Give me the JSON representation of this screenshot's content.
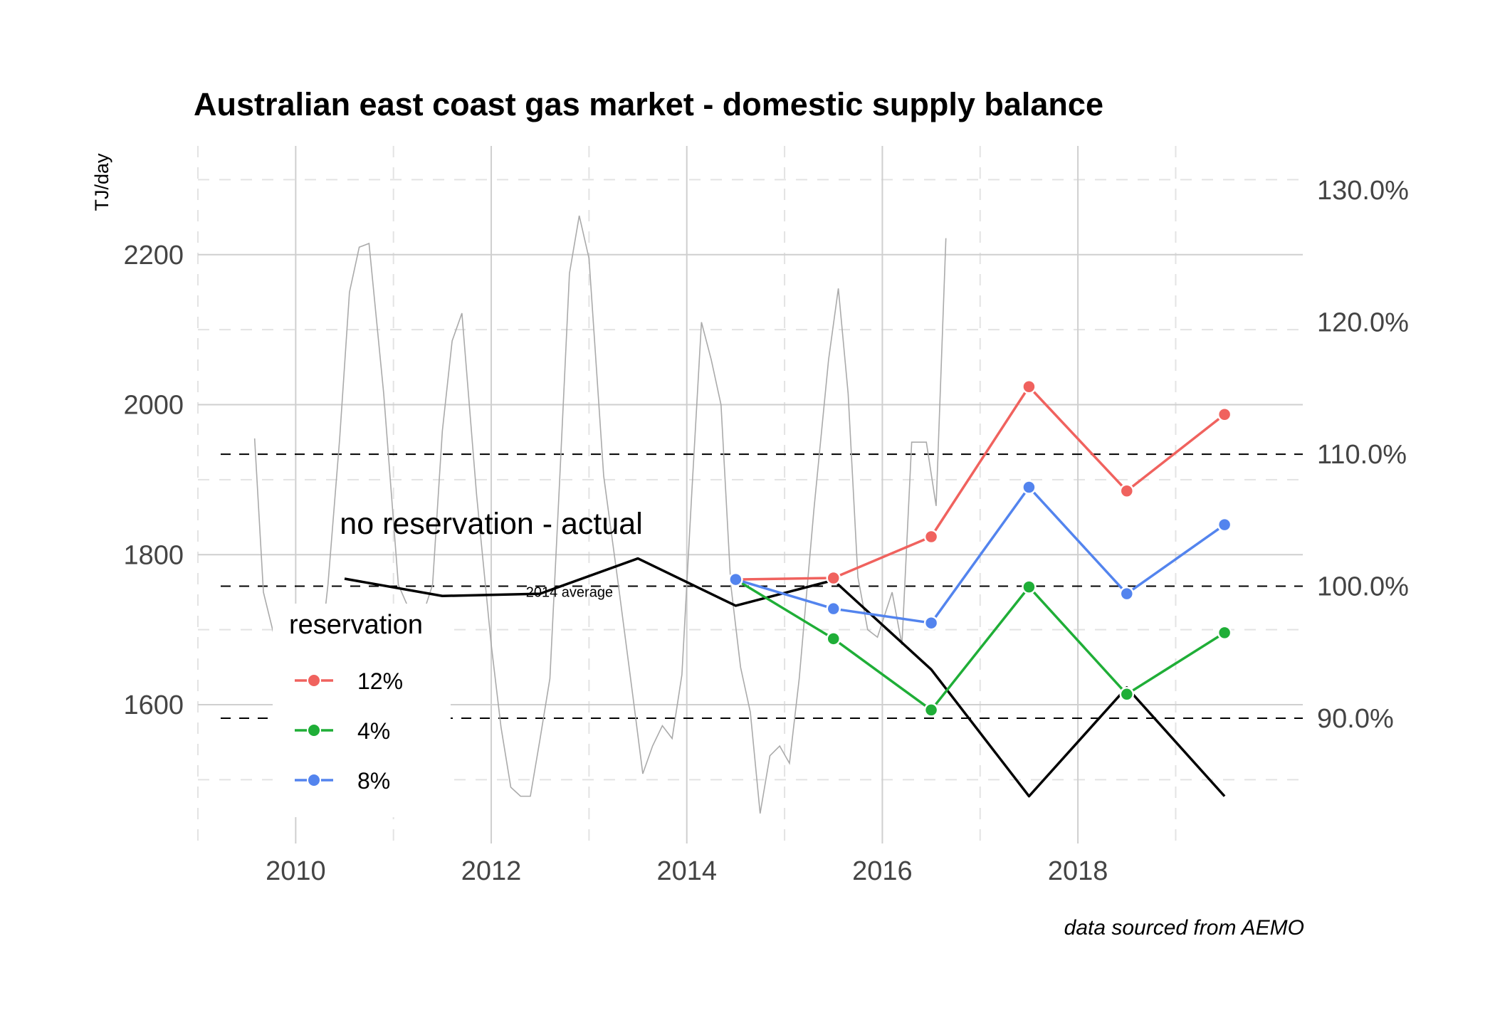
{
  "chart_data": {
    "type": "line",
    "title": "Australian east coast gas market - domestic supply balance",
    "ylabel": "TJ/day",
    "xlabel": "",
    "caption": "data sourced from AEMO",
    "xlim": [
      2009.0,
      2020.3
    ],
    "ylim": [
      1415,
      2345
    ],
    "y_ticks": [
      1600,
      1800,
      2000,
      2200
    ],
    "x_ticks": [
      2010,
      2012,
      2014,
      2016,
      2018
    ],
    "y2_ticks": [
      {
        "value": 1582,
        "label": "90.0%"
      },
      {
        "value": 1758,
        "label": "100.0%"
      },
      {
        "value": 1934,
        "label": "110.0%"
      },
      {
        "value": 2110,
        "label": "120.0%"
      },
      {
        "value": 2286,
        "label": "130.0%"
      }
    ],
    "reference_lines": [
      1582,
      1758,
      1934
    ],
    "grid": true,
    "legend_position": "left-inside",
    "legend_title": "reservation",
    "annotations": {
      "main": {
        "text": "no reservation - actual",
        "x": 2012.0,
        "y": 1828
      },
      "reference": {
        "text": "2014 average",
        "x": 2012.8,
        "y": 1744
      }
    },
    "monthly_actual": {
      "name": "",
      "color": "#aaaaaa",
      "points": [
        [
          2009.58,
          1955
        ],
        [
          2009.67,
          1750
        ],
        [
          2009.83,
          1665
        ],
        [
          2009.92,
          1640
        ],
        [
          2010.0,
          1600
        ],
        [
          2010.17,
          1570
        ],
        [
          2010.33,
          1760
        ],
        [
          2010.45,
          1955
        ],
        [
          2010.55,
          2150
        ],
        [
          2010.65,
          2210
        ],
        [
          2010.75,
          2215
        ],
        [
          2010.9,
          2015
        ],
        [
          2011.05,
          1760
        ],
        [
          2011.25,
          1700
        ],
        [
          2011.4,
          1760
        ],
        [
          2011.5,
          1965
        ],
        [
          2011.6,
          2085
        ],
        [
          2011.7,
          2122
        ],
        [
          2011.85,
          1880
        ],
        [
          2012.0,
          1680
        ],
        [
          2012.1,
          1570
        ],
        [
          2012.2,
          1490
        ],
        [
          2012.3,
          1478
        ],
        [
          2012.4,
          1478
        ],
        [
          2012.5,
          1555
        ],
        [
          2012.6,
          1635
        ],
        [
          2012.7,
          1900
        ],
        [
          2012.8,
          2175
        ],
        [
          2012.9,
          2252
        ],
        [
          2013.0,
          2195
        ],
        [
          2013.15,
          1905
        ],
        [
          2013.3,
          1760
        ],
        [
          2013.45,
          1610
        ],
        [
          2013.55,
          1508
        ],
        [
          2013.65,
          1545
        ],
        [
          2013.75,
          1572
        ],
        [
          2013.85,
          1555
        ],
        [
          2013.95,
          1640
        ],
        [
          2014.05,
          1880
        ],
        [
          2014.15,
          2110
        ],
        [
          2014.25,
          2060
        ],
        [
          2014.35,
          2000
        ],
        [
          2014.45,
          1760
        ],
        [
          2014.55,
          1650
        ],
        [
          2014.65,
          1590
        ],
        [
          2014.75,
          1455
        ],
        [
          2014.85,
          1532
        ],
        [
          2014.95,
          1545
        ],
        [
          2015.05,
          1522
        ],
        [
          2015.15,
          1635
        ],
        [
          2015.3,
          1860
        ],
        [
          2015.45,
          2060
        ],
        [
          2015.55,
          2155
        ],
        [
          2015.65,
          2015
        ],
        [
          2015.75,
          1770
        ],
        [
          2015.85,
          1700
        ],
        [
          2015.95,
          1690
        ],
        [
          2016.1,
          1750
        ],
        [
          2016.2,
          1680
        ],
        [
          2016.3,
          1950
        ],
        [
          2016.45,
          1950
        ],
        [
          2016.55,
          1865
        ],
        [
          2016.65,
          2222
        ]
      ]
    },
    "no_reservation_series": {
      "name": "no reservation - actual",
      "color": "#000000",
      "x": [
        2010.5,
        2011.5,
        2012.5,
        2013.5,
        2014.5,
        2015.5,
        2016.5,
        2017.5,
        2018.5,
        2019.5
      ],
      "values": [
        1768,
        1745,
        1748,
        1795,
        1732,
        1766,
        1647,
        1478,
        1623,
        1478
      ]
    },
    "series": [
      {
        "name": "12%",
        "color": "#F0625E",
        "x": [
          2014.5,
          2015.5,
          2016.5,
          2017.5,
          2018.5,
          2019.5
        ],
        "values": [
          1767,
          1769,
          1824,
          2024,
          1885,
          1987
        ]
      },
      {
        "name": "4%",
        "color": "#1FAE37",
        "x": [
          2014.5,
          2015.5,
          2016.5,
          2017.5,
          2018.5,
          2019.5
        ],
        "values": [
          1767,
          1688,
          1593,
          1757,
          1614,
          1696
        ]
      },
      {
        "name": "8%",
        "color": "#5384EE",
        "x": [
          2014.5,
          2015.5,
          2016.5,
          2017.5,
          2018.5,
          2019.5
        ],
        "values": [
          1767,
          1728,
          1709,
          1890,
          1748,
          1840
        ]
      }
    ]
  }
}
